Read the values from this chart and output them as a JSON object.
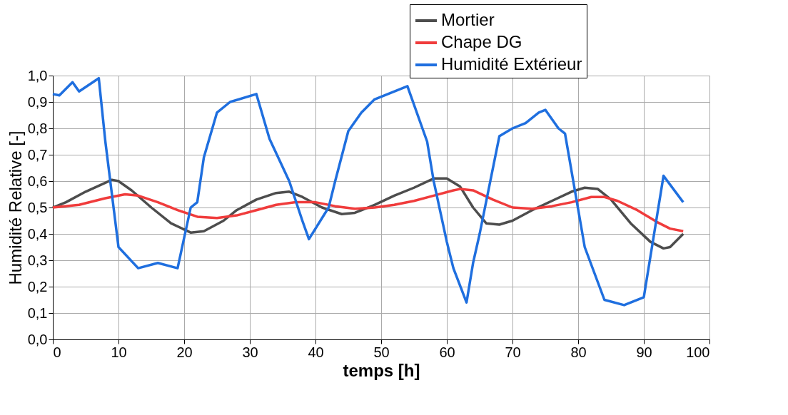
{
  "chart_data": {
    "type": "line",
    "xlabel": "temps [h]",
    "ylabel": "Humidité Relative [-]",
    "xlim": [
      0,
      100
    ],
    "xticks": [
      0,
      10,
      20,
      30,
      40,
      50,
      60,
      70,
      80,
      90,
      100
    ],
    "ylim": [
      0,
      1
    ],
    "yticks": [
      {
        "value": 0,
        "label": "0,0"
      },
      {
        "value": 0.1,
        "label": "0,1"
      },
      {
        "value": 0.2,
        "label": "0,2"
      },
      {
        "value": 0.3,
        "label": "0,3"
      },
      {
        "value": 0.4,
        "label": "0,4"
      },
      {
        "value": 0.5,
        "label": "0,5"
      },
      {
        "value": 0.6,
        "label": "0,6"
      },
      {
        "value": 0.7,
        "label": "0,7"
      },
      {
        "value": 0.8,
        "label": "0,8"
      },
      {
        "value": 0.9,
        "label": "0,9"
      },
      {
        "value": 1,
        "label": "1,0"
      }
    ],
    "grid": true,
    "legend": "top right",
    "marker": "none",
    "line_style": "solid",
    "series": [
      {
        "name": "Mortier",
        "color": "#4d4d4d",
        "x": [
          0,
          2,
          5,
          9,
          10,
          12,
          15,
          18,
          21,
          23,
          26,
          28,
          31,
          34,
          36,
          38,
          41,
          44,
          46,
          49,
          52,
          55,
          58,
          60,
          62,
          64,
          66,
          68,
          70,
          73,
          76,
          79,
          81,
          83,
          85,
          88,
          91,
          93,
          94,
          96
        ],
        "values": [
          0.5,
          0.52,
          0.56,
          0.605,
          0.6,
          0.565,
          0.5,
          0.44,
          0.405,
          0.41,
          0.45,
          0.49,
          0.53,
          0.555,
          0.56,
          0.54,
          0.5,
          0.475,
          0.48,
          0.51,
          0.545,
          0.575,
          0.61,
          0.61,
          0.58,
          0.5,
          0.44,
          0.435,
          0.45,
          0.49,
          0.525,
          0.56,
          0.575,
          0.57,
          0.53,
          0.44,
          0.37,
          0.345,
          0.35,
          0.4
        ]
      },
      {
        "name": "Chape DG",
        "color": "#f03c3c",
        "x": [
          0,
          4,
          8,
          11,
          13,
          16,
          19,
          22,
          25,
          28,
          31,
          34,
          37,
          40,
          43,
          46,
          49,
          52,
          55,
          58,
          61,
          62,
          64,
          67,
          70,
          73,
          76,
          79,
          82,
          84,
          86,
          89,
          92,
          94,
          96
        ],
        "values": [
          0.5,
          0.51,
          0.535,
          0.55,
          0.545,
          0.52,
          0.49,
          0.465,
          0.46,
          0.47,
          0.49,
          0.51,
          0.52,
          0.52,
          0.505,
          0.495,
          0.5,
          0.51,
          0.525,
          0.545,
          0.565,
          0.57,
          0.565,
          0.53,
          0.5,
          0.495,
          0.505,
          0.52,
          0.54,
          0.54,
          0.525,
          0.49,
          0.445,
          0.42,
          0.41
        ]
      },
      {
        "name": "Humidité Extérieur",
        "color": "#1f6fdf",
        "x": [
          0,
          1,
          3,
          4,
          7,
          8,
          10,
          13,
          16,
          19,
          21,
          22,
          23,
          25,
          27,
          31,
          33,
          36,
          38,
          39,
          42,
          43,
          45,
          47,
          49,
          54,
          57,
          58,
          60,
          61,
          63,
          64,
          65,
          68,
          70,
          72,
          74,
          75,
          77,
          78,
          81,
          84,
          87,
          90,
          93,
          96
        ],
        "values": [
          0.93,
          0.925,
          0.975,
          0.94,
          0.99,
          0.75,
          0.35,
          0.27,
          0.29,
          0.27,
          0.5,
          0.52,
          0.69,
          0.86,
          0.9,
          0.93,
          0.76,
          0.6,
          0.45,
          0.38,
          0.5,
          0.6,
          0.79,
          0.86,
          0.91,
          0.96,
          0.75,
          0.6,
          0.37,
          0.27,
          0.14,
          0.29,
          0.4,
          0.77,
          0.8,
          0.82,
          0.86,
          0.87,
          0.8,
          0.78,
          0.35,
          0.15,
          0.13,
          0.16,
          0.62,
          0.52
        ]
      }
    ]
  }
}
